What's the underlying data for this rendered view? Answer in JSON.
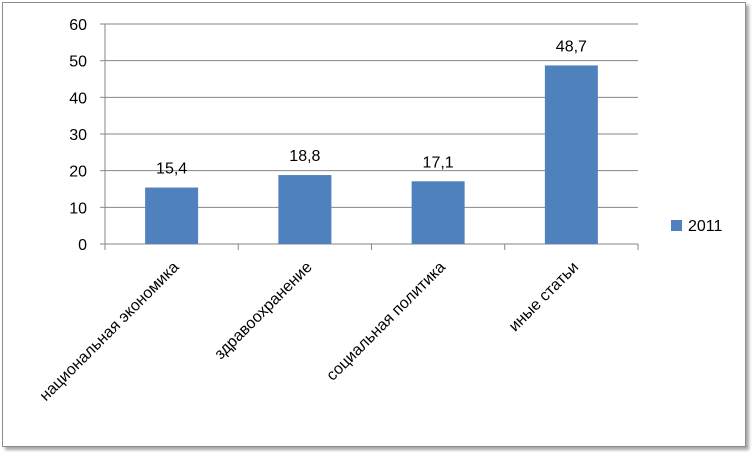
{
  "chart_data": {
    "type": "bar",
    "categories": [
      "национальная экономика",
      "здравоохранение",
      "социальная политика",
      "иные статьи"
    ],
    "series": [
      {
        "name": "2011",
        "values": [
          15.4,
          18.8,
          17.1,
          48.7
        ],
        "labels": [
          "15,4",
          "18,8",
          "17,1",
          "48,7"
        ],
        "color": "#4f81bd"
      }
    ],
    "ylim": [
      0,
      60
    ],
    "yticks": [
      "0",
      "10",
      "20",
      "30",
      "40",
      "50",
      "60"
    ],
    "grid": true,
    "legend": "right"
  }
}
